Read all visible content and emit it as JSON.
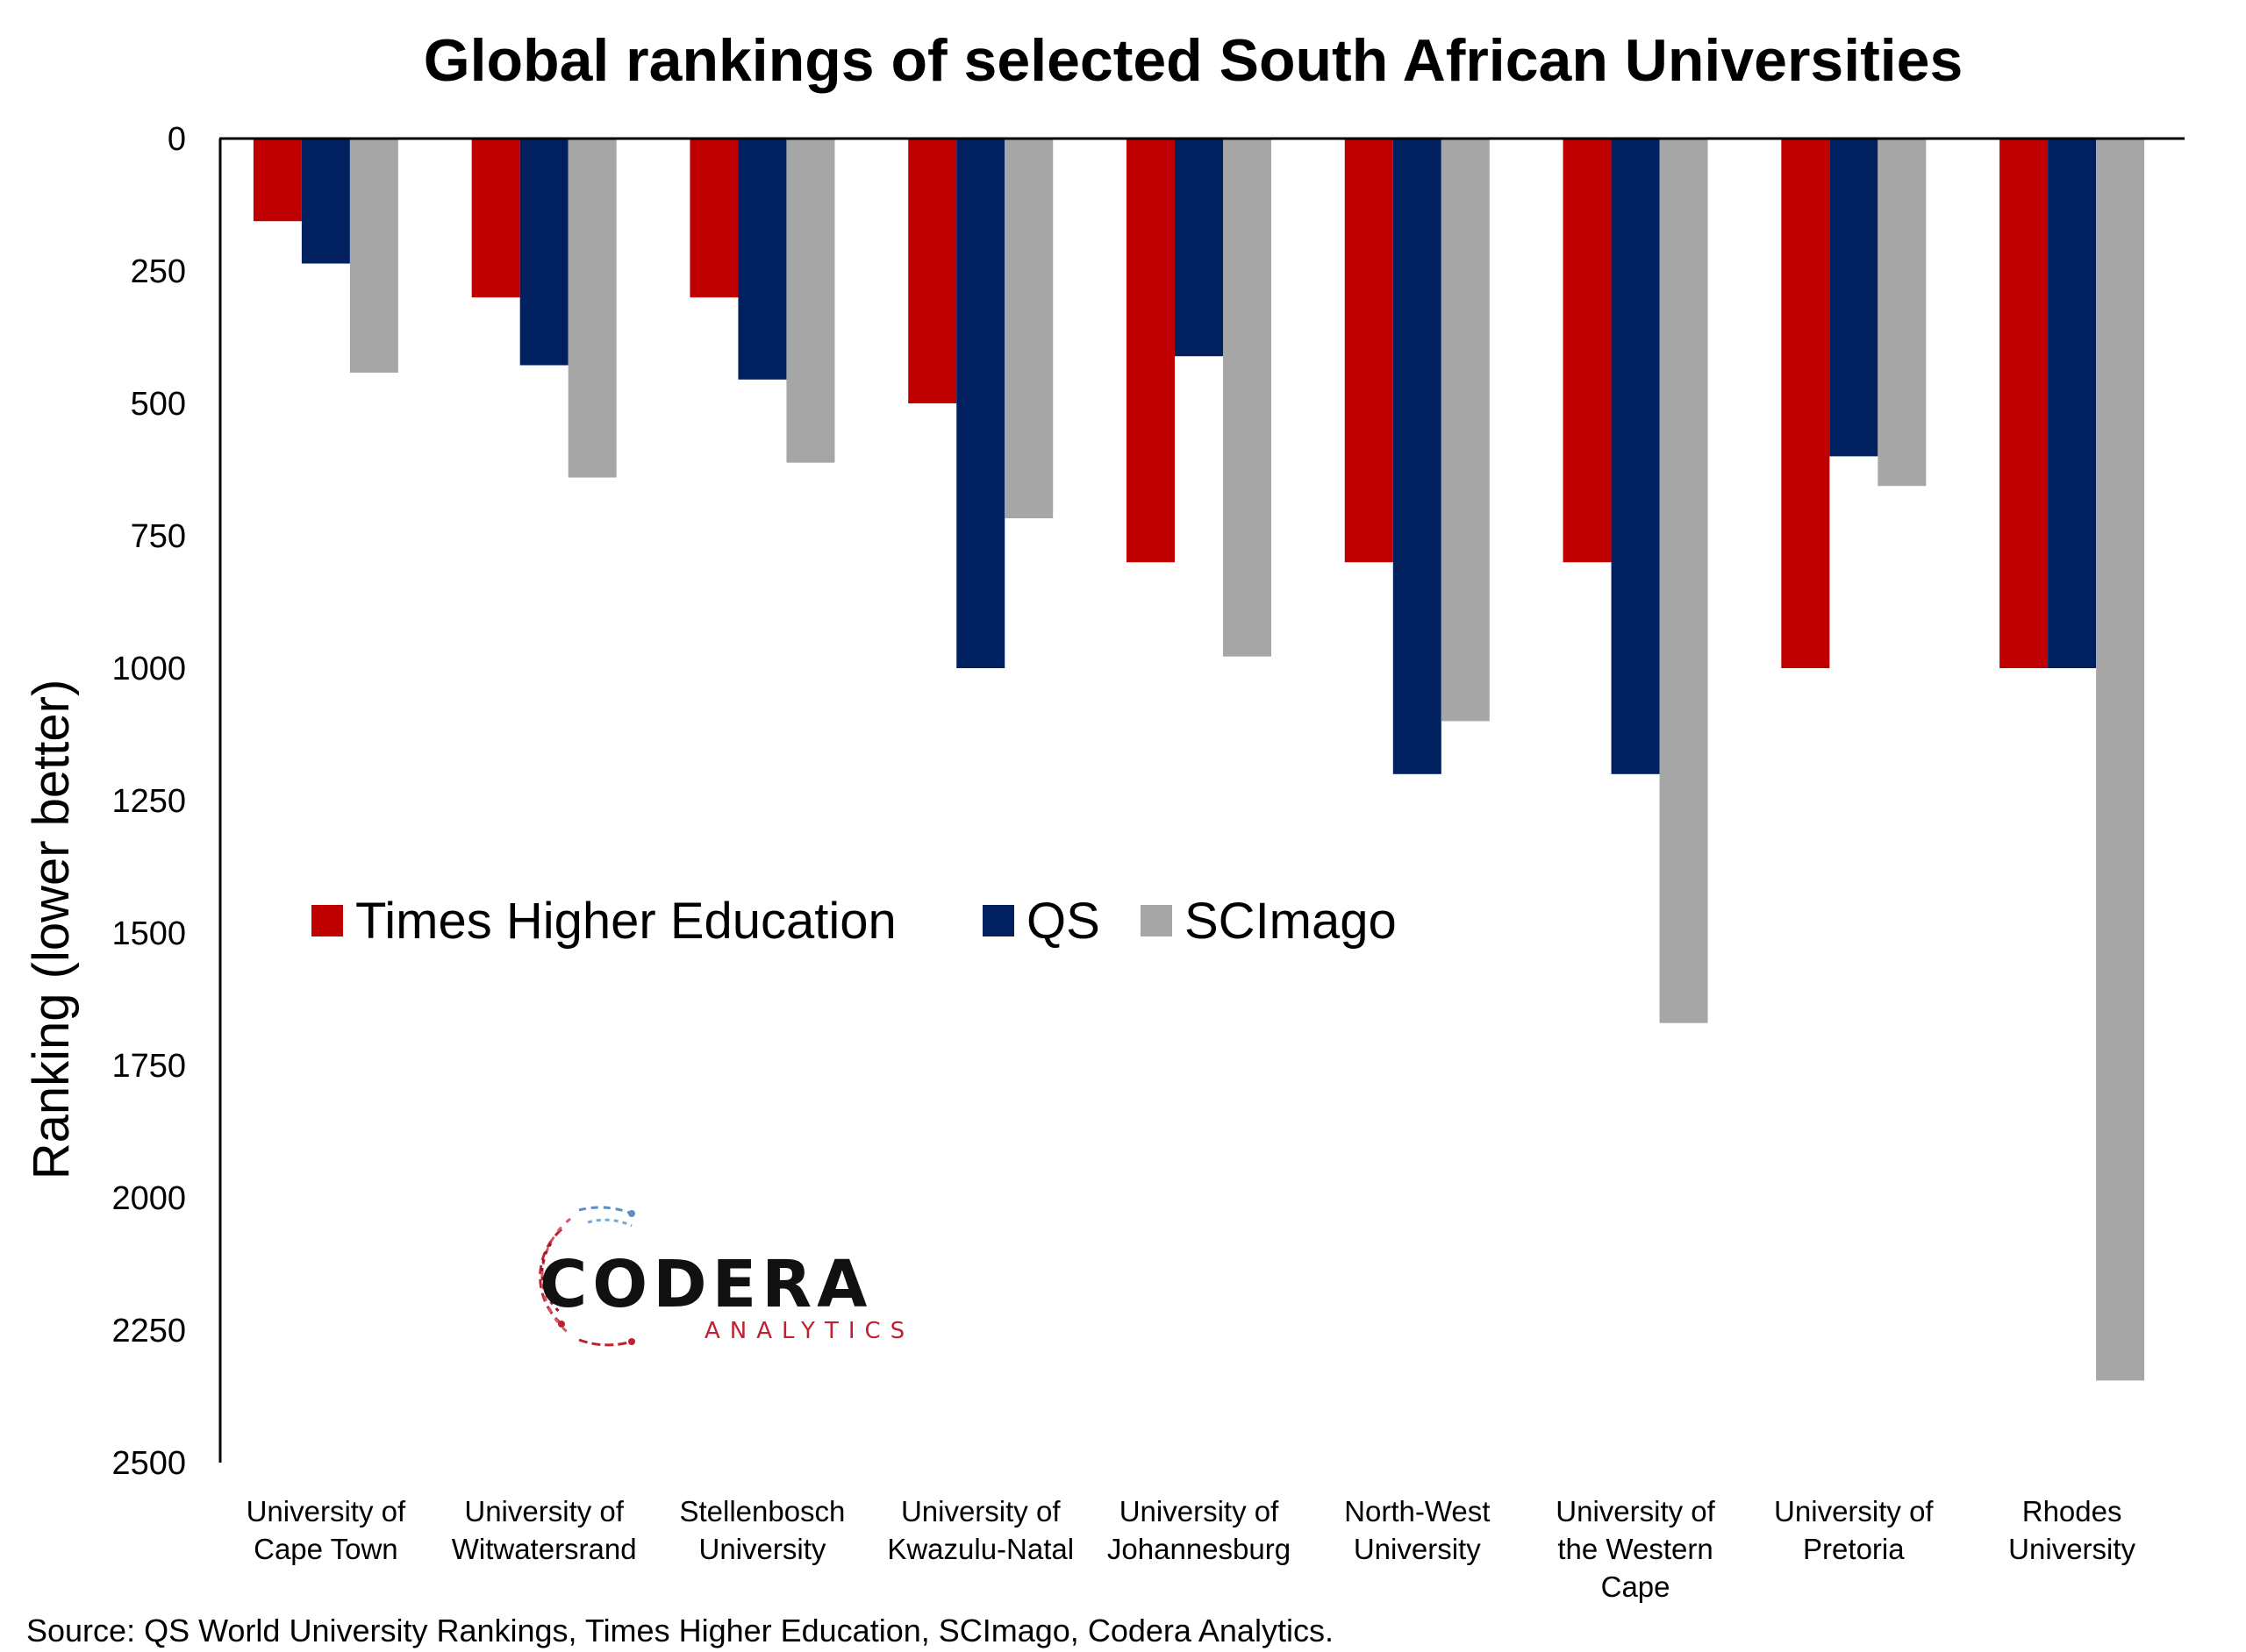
{
  "chart_data": {
    "type": "bar",
    "title": "Global rankings of selected South African Universities",
    "ylabel": "Ranking (lower better)",
    "xlabel": "",
    "ylim": [
      0,
      2500
    ],
    "y_inverted": true,
    "yticks": [
      "0",
      "250",
      "500",
      "750",
      "1000",
      "1250",
      "1500",
      "1750",
      "2000",
      "2250",
      "2500"
    ],
    "categories": [
      "University of Cape Town",
      "University of Witwatersrand",
      "Stellenbosch University",
      "University of Kwazulu-Natal",
      "University of Johannesburg",
      "North-West University",
      "University of the Western Cape",
      "University of Pretoria",
      "Rhodes University"
    ],
    "category_lines": [
      [
        "University of",
        "Cape Town"
      ],
      [
        "University of",
        "Witwatersrand"
      ],
      [
        "Stellenbosch",
        "University"
      ],
      [
        "University of",
        "Kwazulu-Natal"
      ],
      [
        "University of",
        "Johannesburg"
      ],
      [
        "North-West",
        "University"
      ],
      [
        "University of",
        "the Western",
        "Cape"
      ],
      [
        "University of",
        "Pretoria"
      ],
      [
        "Rhodes",
        "University"
      ]
    ],
    "series": [
      {
        "name": "Times Higher Education",
        "color": "#C00000",
        "values": [
          156,
          300,
          300,
          500,
          800,
          800,
          800,
          1000,
          1000
        ]
      },
      {
        "name": "QS",
        "color": "#002060",
        "values": [
          236,
          428,
          455,
          1000,
          411,
          1200,
          1200,
          600,
          1000
        ]
      },
      {
        "name": "SCImago",
        "color": "#A6A6A6",
        "values": [
          442,
          640,
          612,
          717,
          978,
          1100,
          1670,
          656,
          2345
        ]
      }
    ],
    "legend_position": "middle-left",
    "grid": false
  },
  "source": "Source: QS World University Rankings, Times Higher Education, SCImago, Codera Analytics.",
  "logo": {
    "name": "CODERA",
    "subtitle": "ANALYTICS"
  }
}
